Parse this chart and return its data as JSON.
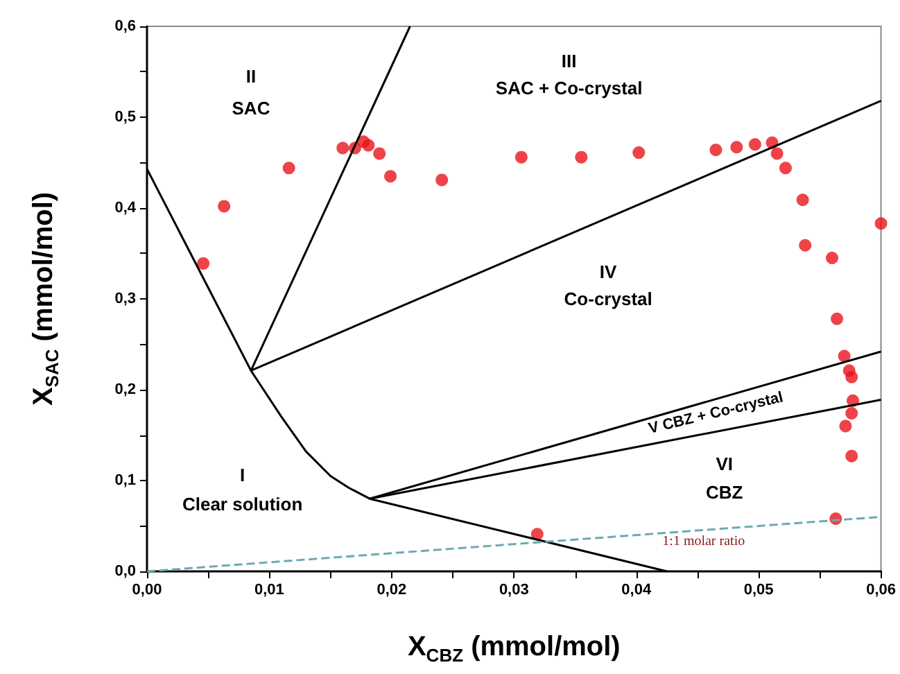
{
  "chart_data": {
    "type": "scatter",
    "xlabel": "X$_{CBZ}$ (mmol/mol)",
    "ylabel": "X$_{SAC}$ (mmol/mol)",
    "xlim": [
      0,
      0.06
    ],
    "ylim": [
      0,
      0.6
    ],
    "xticks": [
      {
        "value": 0,
        "label": "0,00"
      },
      {
        "value": 0.005,
        "label": null
      },
      {
        "value": 0.01,
        "label": "0,01"
      },
      {
        "value": 0.015,
        "label": null
      },
      {
        "value": 0.02,
        "label": "0,02"
      },
      {
        "value": 0.025,
        "label": null
      },
      {
        "value": 0.03,
        "label": "0,03"
      },
      {
        "value": 0.035,
        "label": null
      },
      {
        "value": 0.04,
        "label": "0,04"
      },
      {
        "value": 0.045,
        "label": null
      },
      {
        "value": 0.05,
        "label": "0,05"
      },
      {
        "value": 0.055,
        "label": null
      },
      {
        "value": 0.06,
        "label": "0,06"
      }
    ],
    "yticks": [
      {
        "value": 0,
        "label": "0,0"
      },
      {
        "value": 0.05,
        "label": null
      },
      {
        "value": 0.1,
        "label": "0,1"
      },
      {
        "value": 0.15,
        "label": null
      },
      {
        "value": 0.2,
        "label": "0,2"
      },
      {
        "value": 0.25,
        "label": null
      },
      {
        "value": 0.3,
        "label": "0,3"
      },
      {
        "value": 0.35,
        "label": null
      },
      {
        "value": 0.4,
        "label": "0,4"
      },
      {
        "value": 0.45,
        "label": null
      },
      {
        "value": 0.5,
        "label": "0,5"
      },
      {
        "value": 0.55,
        "label": null
      },
      {
        "value": 0.6,
        "label": "0,6"
      }
    ],
    "grid": false,
    "series": [
      {
        "marker": "circle",
        "color": "#e8141b",
        "x": [
          0.0046,
          0.0063,
          0.0116,
          0.016,
          0.017,
          0.0177,
          0.0181,
          0.019,
          0.0199,
          0.0241,
          0.0306,
          0.0355,
          0.0402,
          0.0465,
          0.0482,
          0.0497,
          0.0511,
          0.0515,
          0.0522,
          0.0536,
          0.0538,
          0.056,
          0.0564,
          0.057,
          0.0574,
          0.0576,
          0.0577,
          0.0576,
          0.0571,
          0.0576,
          0.0563,
          0.0319,
          0.06
        ],
        "values": [
          0.339,
          0.402,
          0.444,
          0.466,
          0.466,
          0.473,
          0.469,
          0.46,
          0.435,
          0.431,
          0.456,
          0.456,
          0.461,
          0.464,
          0.467,
          0.47,
          0.472,
          0.46,
          0.444,
          0.409,
          0.359,
          0.345,
          0.278,
          0.237,
          0.221,
          0.214,
          0.188,
          0.174,
          0.16,
          0.127,
          0.058,
          0.041,
          0.383
        ]
      },
      {
        "type": "line",
        "marker": "none",
        "line_style": "solid",
        "color": "#000000",
        "x": [
          0,
          0.0085,
          0.011,
          0.013,
          0.015,
          0.0165,
          0.0182,
          0.0425
        ],
        "values": [
          0.443,
          0.221,
          0.17,
          0.132,
          0.105,
          0.092,
          0.08,
          0
        ]
      },
      {
        "type": "line",
        "marker": "none",
        "line_style": "solid",
        "color": "#000000",
        "x": [
          0.0085,
          0.0215
        ],
        "values": [
          0.221,
          0.6
        ]
      },
      {
        "type": "line",
        "marker": "none",
        "line_style": "solid",
        "color": "#000000",
        "x": [
          0.0085,
          0.06
        ],
        "values": [
          0.221,
          0.518
        ]
      },
      {
        "type": "line",
        "marker": "none",
        "line_style": "solid",
        "color": "#000000",
        "x": [
          0.0182,
          0.06
        ],
        "values": [
          0.08,
          0.242
        ]
      },
      {
        "type": "line",
        "marker": "none",
        "line_style": "solid",
        "color": "#000000",
        "x": [
          0.0182,
          0.06
        ],
        "values": [
          0.08,
          0.189
        ]
      },
      {
        "type": "line",
        "marker": "none",
        "line_style": "dashed",
        "color": "#6aabb0",
        "x": [
          0,
          0.06
        ],
        "values": [
          0,
          0.06
        ]
      }
    ],
    "annotations": [
      "II",
      "SAC",
      "III",
      "SAC + Co-crystal",
      "IV",
      "Co-crystal",
      "I",
      "Clear solution",
      "V CBZ + Co-crystal",
      "VI",
      "CBZ",
      "1:1 molar ratio"
    ]
  }
}
